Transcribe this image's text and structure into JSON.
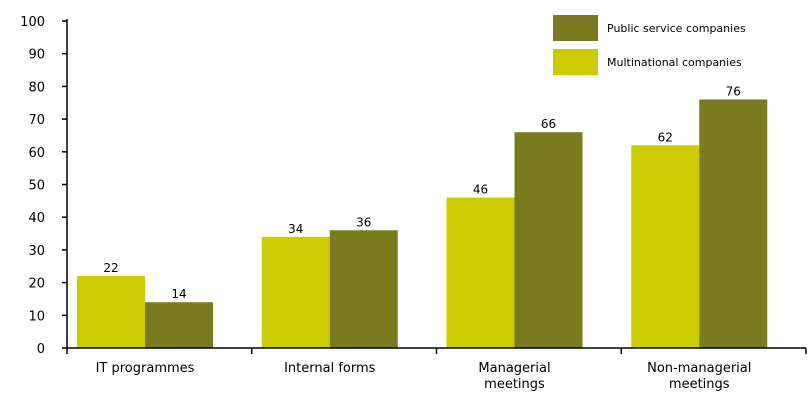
{
  "chart_data": {
    "type": "bar",
    "categories": [
      [
        "IT programmes"
      ],
      [
        "Internal forms"
      ],
      [
        "Managerial",
        "meetings"
      ],
      [
        "Non-managerial",
        "meetings"
      ]
    ],
    "series": [
      {
        "name": "Multinational companies",
        "color": "#cccc00",
        "values": [
          22,
          34,
          46,
          62
        ]
      },
      {
        "name": "Public service companies",
        "color": "#7a7a1f",
        "values": [
          14,
          36,
          66,
          76
        ]
      }
    ],
    "ylim": [
      0,
      100
    ],
    "yticks": [
      0,
      10,
      20,
      30,
      40,
      50,
      60,
      70,
      80,
      90,
      100
    ],
    "grid": false,
    "legend_position": "top-right",
    "legend_order": [
      1,
      0
    ]
  }
}
